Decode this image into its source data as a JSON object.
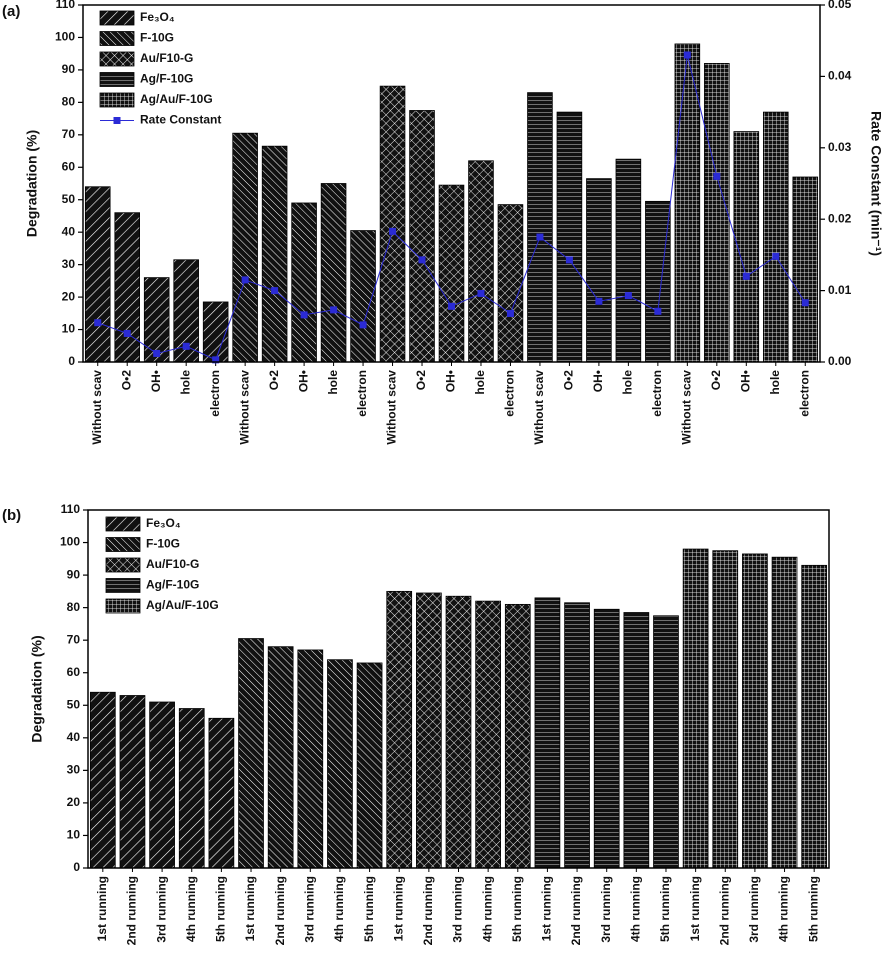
{
  "chart_data": [
    {
      "type": "bar",
      "label": "(a)",
      "ylabel": "Degradation (%)",
      "y2label": "Rate Constant (min⁻¹)",
      "categories": [
        "Without scav",
        "O•2",
        "OH•",
        "hole",
        "electron",
        "Without scav",
        "O•2",
        "OH•",
        "hole",
        "electron",
        "Without scav",
        "O•2",
        "OH•",
        "hole",
        "electron",
        "Without scav",
        "O•2",
        "OH•",
        "hole",
        "electron",
        "Without scav",
        "O•2",
        "OH•",
        "hole",
        "electron"
      ],
      "ylim": [
        0,
        110
      ],
      "yticks": [
        0,
        10,
        20,
        30,
        40,
        50,
        60,
        70,
        80,
        90,
        100,
        110
      ],
      "y2lim": [
        0,
        0.05
      ],
      "y2ticks": [
        {
          "value": 0,
          "label": "0.00"
        },
        {
          "value": 0.01,
          "label": "0.01"
        },
        {
          "value": 0.02,
          "label": "0.02"
        },
        {
          "value": 0.03,
          "label": "0.03"
        },
        {
          "value": 0.04,
          "label": "0.04"
        },
        {
          "value": 0.05,
          "label": "0.05"
        }
      ],
      "series": [
        {
          "name": "Fe₃O₄",
          "hatch": "diagonal",
          "values": [
            54,
            46,
            26,
            31.5,
            18.5,
            null,
            null,
            null,
            null,
            null,
            null,
            null,
            null,
            null,
            null,
            null,
            null,
            null,
            null,
            null,
            null,
            null,
            null,
            null,
            null
          ]
        },
        {
          "name": "F-10G",
          "hatch": "back-diagonal",
          "values": [
            null,
            null,
            null,
            null,
            null,
            70.5,
            66.5,
            49,
            55,
            40.5,
            null,
            null,
            null,
            null,
            null,
            null,
            null,
            null,
            null,
            null,
            null,
            null,
            null,
            null,
            null
          ]
        },
        {
          "name": "Au/F10-G",
          "hatch": "cross",
          "values": [
            null,
            null,
            null,
            null,
            null,
            null,
            null,
            null,
            null,
            null,
            85,
            77.5,
            54.5,
            62,
            48.5,
            null,
            null,
            null,
            null,
            null,
            null,
            null,
            null,
            null,
            null
          ]
        },
        {
          "name": "Ag/F-10G",
          "hatch": "horizontal",
          "values": [
            null,
            null,
            null,
            null,
            null,
            null,
            null,
            null,
            null,
            null,
            null,
            null,
            null,
            null,
            null,
            83,
            77,
            56.5,
            62.5,
            49.5,
            null,
            null,
            null,
            null,
            null
          ]
        },
        {
          "name": "Ag/Au/F-10G",
          "hatch": "grid",
          "values": [
            null,
            null,
            null,
            null,
            null,
            null,
            null,
            null,
            null,
            null,
            null,
            null,
            null,
            null,
            null,
            null,
            null,
            null,
            null,
            null,
            98,
            92,
            71,
            77,
            57
          ]
        },
        {
          "name": "Rate Constant",
          "type": "line",
          "axis": "y2",
          "color": "#2b2bd6",
          "values": [
            0.0055,
            0.004,
            0.0012,
            0.0022,
            0.0003,
            0.0115,
            0.01,
            0.0066,
            0.0073,
            0.0052,
            0.0183,
            0.0143,
            0.0078,
            0.0096,
            0.0068,
            0.0175,
            0.0143,
            0.0085,
            0.0093,
            0.0071,
            0.043,
            0.026,
            0.012,
            0.0148,
            0.0083
          ]
        }
      ]
    },
    {
      "type": "bar",
      "label": "(b)",
      "ylabel": "Degradation (%)",
      "categories": [
        "1st running",
        "2nd running",
        "3rd running",
        "4th running",
        "5th running",
        "1st running",
        "2nd running",
        "3rd running",
        "4th running",
        "5th running",
        "1st running",
        "2nd running",
        "3rd running",
        "4th running",
        "5th running",
        "1st running",
        "2nd running",
        "3rd running",
        "4th running",
        "5th running",
        "1st running",
        "2nd running",
        "3rd running",
        "4th running",
        "5th running"
      ],
      "ylim": [
        0,
        110
      ],
      "yticks": [
        0,
        10,
        20,
        30,
        40,
        50,
        60,
        70,
        80,
        90,
        100,
        110
      ],
      "series": [
        {
          "name": "Fe₃O₄",
          "hatch": "diagonal",
          "values": [
            54,
            53,
            51,
            49,
            46,
            null,
            null,
            null,
            null,
            null,
            null,
            null,
            null,
            null,
            null,
            null,
            null,
            null,
            null,
            null,
            null,
            null,
            null,
            null,
            null
          ]
        },
        {
          "name": "F-10G",
          "hatch": "back-diagonal",
          "values": [
            null,
            null,
            null,
            null,
            null,
            70.5,
            68,
            67,
            64,
            63,
            null,
            null,
            null,
            null,
            null,
            null,
            null,
            null,
            null,
            null,
            null,
            null,
            null,
            null,
            null
          ]
        },
        {
          "name": "Au/F10-G",
          "hatch": "cross",
          "values": [
            null,
            null,
            null,
            null,
            null,
            null,
            null,
            null,
            null,
            null,
            85,
            84.5,
            83.5,
            82,
            81,
            null,
            null,
            null,
            null,
            null,
            null,
            null,
            null,
            null,
            null
          ]
        },
        {
          "name": "Ag/F-10G",
          "hatch": "horizontal",
          "values": [
            null,
            null,
            null,
            null,
            null,
            null,
            null,
            null,
            null,
            null,
            null,
            null,
            null,
            null,
            null,
            83,
            81.5,
            79.5,
            78.5,
            77.5,
            null,
            null,
            null,
            null,
            null
          ]
        },
        {
          "name": "Ag/Au/F-10G",
          "hatch": "grid",
          "values": [
            null,
            null,
            null,
            null,
            null,
            null,
            null,
            null,
            null,
            null,
            null,
            null,
            null,
            null,
            null,
            null,
            null,
            null,
            null,
            null,
            98,
            97.5,
            96.5,
            95.5,
            93
          ]
        }
      ]
    }
  ]
}
